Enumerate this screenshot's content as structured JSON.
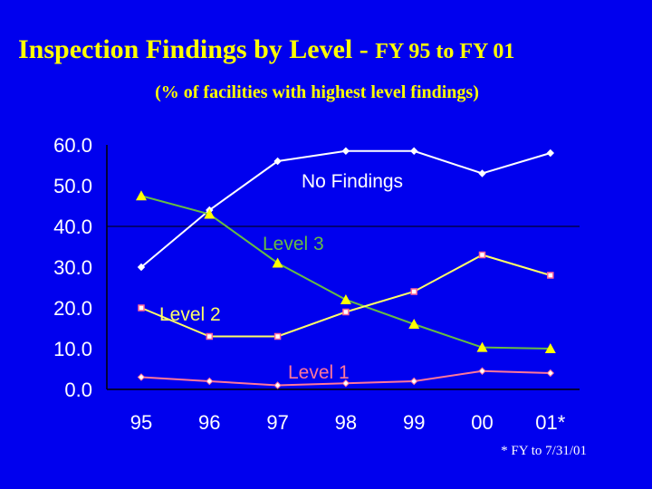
{
  "chart_data": {
    "type": "line",
    "title_main": "Inspection Findings by Level - ",
    "title_sub": "FY 95 to FY 01",
    "subtitle": "(% of facilities with highest level findings)",
    "categories": [
      "95",
      "96",
      "97",
      "98",
      "99",
      "00",
      "01*"
    ],
    "y_ticks": [
      "60.0",
      "50.0",
      "40.0",
      "30.0",
      "20.0",
      "10.0",
      "0.0"
    ],
    "ylim": [
      0,
      60
    ],
    "grid": "horizontal at 40.0",
    "footnote": "* FY to 7/31/01",
    "series": [
      {
        "name": "No Findings",
        "color": "#ffffff",
        "marker": "diamond",
        "values": [
          30.0,
          44.0,
          56.0,
          58.5,
          58.5,
          53.0,
          58.0
        ]
      },
      {
        "name": "Level 3",
        "color": "#66bb44",
        "marker": "triangle",
        "marker_color": "#ffff00",
        "values": [
          47.5,
          43.0,
          31.0,
          22.0,
          16.0,
          10.3,
          10.0
        ]
      },
      {
        "name": "Level 2",
        "color": "#ffff66",
        "marker": "square",
        "marker_color": "#ff6699",
        "values": [
          20.0,
          13.0,
          13.0,
          19.0,
          24.0,
          33.0,
          28.0
        ]
      },
      {
        "name": "Level 1",
        "color": "#ff7799",
        "marker": "diamond",
        "marker_color": "#ffffff",
        "values": [
          3.0,
          2.0,
          1.0,
          1.5,
          2.0,
          4.5,
          4.0
        ]
      }
    ]
  }
}
